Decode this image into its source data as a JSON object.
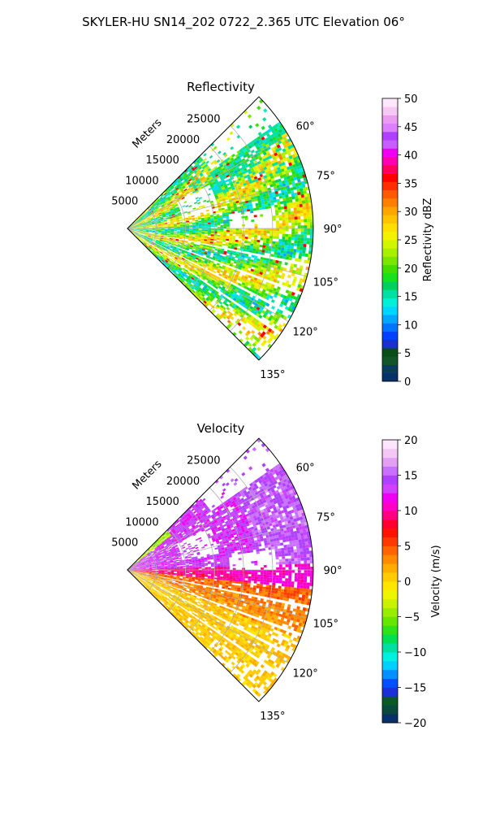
{
  "figure": {
    "title": "SKYLER-HU  SN14_202  0722_2.365 UTC Elevation 06°"
  },
  "chart_data": [
    {
      "type": "heatmap",
      "title": "Reflectivity",
      "radial_axis_label": "Meters",
      "radial_ticks": [
        "5000",
        "10000",
        "15000",
        "20000",
        "25000"
      ],
      "radial_tick_values": [
        5000,
        10000,
        15000,
        20000,
        25000
      ],
      "rlim": [
        0,
        32000
      ],
      "azimuth_range_deg": [
        45,
        135
      ],
      "azimuth_ticks": [
        "60°",
        "75°",
        "90°",
        "105°",
        "120°",
        "135°"
      ],
      "azimuth_tick_values": [
        60,
        75,
        90,
        105,
        120,
        135
      ],
      "grid": true,
      "colorbar": {
        "label": "Reflectivity dBZ",
        "range": [
          0,
          50
        ],
        "ticks": [
          "0",
          "5",
          "10",
          "15",
          "20",
          "25",
          "30",
          "35",
          "40",
          "45",
          "50"
        ],
        "tick_values": [
          0,
          5,
          10,
          15,
          20,
          25,
          30,
          35,
          40,
          45,
          50
        ]
      }
    },
    {
      "type": "heatmap",
      "title": "Velocity",
      "radial_axis_label": "Meters",
      "radial_ticks": [
        "5000",
        "10000",
        "15000",
        "20000",
        "25000"
      ],
      "radial_tick_values": [
        5000,
        10000,
        15000,
        20000,
        25000
      ],
      "rlim": [
        0,
        32000
      ],
      "azimuth_range_deg": [
        45,
        135
      ],
      "azimuth_ticks": [
        "60°",
        "75°",
        "90°",
        "105°",
        "120°",
        "135°"
      ],
      "azimuth_tick_values": [
        60,
        75,
        90,
        105,
        120,
        135
      ],
      "grid": true,
      "colorbar": {
        "label": "Velocity (m/s)",
        "range": [
          -20,
          20
        ],
        "ticks": [
          "−20",
          "−15",
          "−10",
          "−5",
          "0",
          "5",
          "10",
          "15",
          "20"
        ],
        "tick_values": [
          -20,
          -15,
          -10,
          -5,
          0,
          5,
          10,
          15,
          20
        ]
      }
    }
  ],
  "colors": {
    "reflectivity_scale": [
      "#08306b",
      "#0a3d5a",
      "#12552b",
      "#0b4d17",
      "#1b2fd0",
      "#0040ff",
      "#0073ff",
      "#00a8ff",
      "#00d6ff",
      "#00f0d8",
      "#00e0a0",
      "#00d060",
      "#15e21a",
      "#44dd00",
      "#7be600",
      "#a8f000",
      "#d2f500",
      "#f3f200",
      "#ffe000",
      "#ffc400",
      "#ffa500",
      "#ff8000",
      "#ff5a00",
      "#ff2d00",
      "#ff0000",
      "#ff0060",
      "#ff00b0",
      "#f000f0",
      "#c95cff",
      "#b040ff",
      "#dd80ff",
      "#ea9cf0",
      "#f5c8f5",
      "#fde8fb"
    ],
    "velocity_scale": [
      "#08306b",
      "#0a4a3c",
      "#0b5a24",
      "#1d2fd6",
      "#0050ff",
      "#0090ff",
      "#00d0ff",
      "#00f0e0",
      "#00e0a0",
      "#00e050",
      "#2fe21a",
      "#66e600",
      "#9aec00",
      "#c8f200",
      "#eef500",
      "#ffe600",
      "#ffcc00",
      "#ffae00",
      "#ff8a00",
      "#ff6400",
      "#ff3a00",
      "#ff1400",
      "#ff0030",
      "#ff0080",
      "#ff00c8",
      "#f000f0",
      "#d040ff",
      "#b040ff",
      "#c870ff",
      "#e3a0f2",
      "#f3c8f5",
      "#fde6fb"
    ]
  }
}
